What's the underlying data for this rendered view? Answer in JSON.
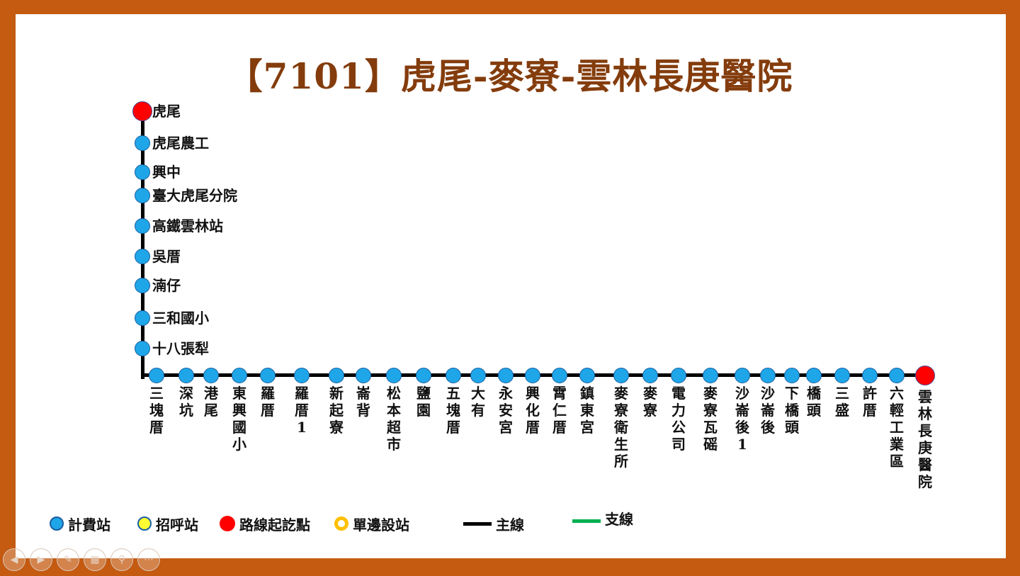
{
  "title": "【7101】虎尾-麥寮-雲林長庚醫院",
  "colors": {
    "fare_stop": "#1fa6e8",
    "flag_stop": "#ffff33",
    "terminal": "#ff0000",
    "one_side": "#ffc000",
    "main_line": "#000000",
    "branch_line": "#00b050"
  },
  "vertical_stops": [
    {
      "name": "虎尾",
      "terminal": true
    },
    {
      "name": "虎尾農工"
    },
    {
      "name": "興中"
    },
    {
      "name": "臺大虎尾分院"
    },
    {
      "name": "高鐵雲林站"
    },
    {
      "name": "吳厝"
    },
    {
      "name": "湳仔"
    },
    {
      "name": "三和國小"
    },
    {
      "name": "十八張犁"
    }
  ],
  "horizontal_stops": [
    {
      "name": "三塊厝"
    },
    {
      "name": "深坑"
    },
    {
      "name": "港尾"
    },
    {
      "name": "東興國小"
    },
    {
      "name": "羅厝"
    },
    {
      "name": "羅厝1"
    },
    {
      "name": "新起寮"
    },
    {
      "name": "崙背"
    },
    {
      "name": "松本超市"
    },
    {
      "name": "鹽園"
    },
    {
      "name": "五塊厝"
    },
    {
      "name": "大有"
    },
    {
      "name": "永安宮"
    },
    {
      "name": "興化厝"
    },
    {
      "name": "霄仁厝"
    },
    {
      "name": "鎮東宮"
    },
    {
      "name": "麥寮衛生所"
    },
    {
      "name": "麥寮"
    },
    {
      "name": "電力公司"
    },
    {
      "name": "麥寮瓦磘"
    },
    {
      "name": "沙崙後1"
    },
    {
      "name": "沙崙後"
    },
    {
      "name": "下橋頭"
    },
    {
      "name": "橋頭"
    },
    {
      "name": "三盛"
    },
    {
      "name": "許厝"
    },
    {
      "name": "六輕工業區"
    },
    {
      "name": "雲林長庚醫院",
      "terminal": true
    }
  ],
  "legend": {
    "fare_stop": "計費站",
    "flag_stop": "招呼站",
    "terminal": "路線起訖點",
    "one_side": "單邊設站",
    "main_line": "主線",
    "branch_line": "支線"
  },
  "nav_icons": [
    "back-icon",
    "forward-icon",
    "pen-icon",
    "slides-icon",
    "zoom-icon",
    "more-icon"
  ]
}
